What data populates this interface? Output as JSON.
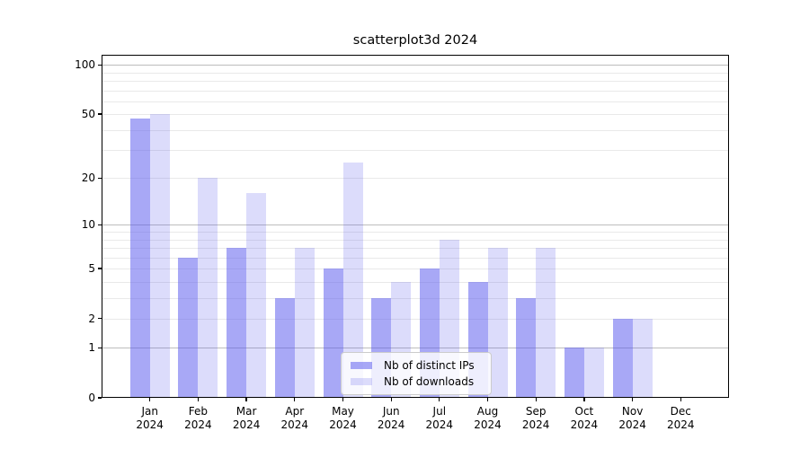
{
  "chart_data": {
    "type": "bar",
    "title": "scatterplot3d 2024",
    "x": {
      "categories": [
        {
          "month": "Jan",
          "year": "2024"
        },
        {
          "month": "Feb",
          "year": "2024"
        },
        {
          "month": "Mar",
          "year": "2024"
        },
        {
          "month": "Apr",
          "year": "2024"
        },
        {
          "month": "May",
          "year": "2024"
        },
        {
          "month": "Jun",
          "year": "2024"
        },
        {
          "month": "Jul",
          "year": "2024"
        },
        {
          "month": "Aug",
          "year": "2024"
        },
        {
          "month": "Sep",
          "year": "2024"
        },
        {
          "month": "Oct",
          "year": "2024"
        },
        {
          "month": "Nov",
          "year": "2024"
        },
        {
          "month": "Dec",
          "year": "2024"
        }
      ]
    },
    "series": [
      {
        "name": "Nb of distinct IPs",
        "color": "rgba(90,90,238,0.53)",
        "values": [
          47,
          6,
          7,
          3,
          5,
          3,
          5,
          4,
          3,
          1,
          2,
          0
        ]
      },
      {
        "name": "Nb of downloads",
        "color": "rgba(90,90,238,0.21)",
        "values": [
          50,
          20,
          16,
          7,
          25,
          4,
          8,
          7,
          7,
          1,
          2,
          0
        ]
      }
    ],
    "y_axis": {
      "scale": "log10(1+value)",
      "tick_values": [
        0,
        1,
        2,
        5,
        10,
        20,
        50,
        100
      ],
      "tick_labels": [
        "0",
        "1",
        "2",
        "5",
        "10",
        "20",
        "50",
        "100"
      ],
      "major_grid_values": [
        1,
        10,
        100
      ],
      "minor_grid_values": [
        2,
        3,
        4,
        5,
        6,
        7,
        8,
        9,
        20,
        30,
        40,
        50,
        60,
        70,
        80,
        90
      ],
      "ylim": [
        0,
        115
      ]
    },
    "legend": {
      "entries": [
        "Nb of distinct IPs",
        "Nb of downloads"
      ],
      "position": "lower center inside plot"
    },
    "grid": "horizontal"
  },
  "colors": {
    "background": "#ffffff",
    "spine": "#000000",
    "grid_major": "#bdbdbd",
    "grid_minor": "#e9e9e9",
    "bar_distinct_ips": "rgba(90,90,238,0.53)",
    "bar_downloads": "rgba(90,90,238,0.21)",
    "legend_border": "#cccccc",
    "legend_background": "rgba(255,255,255,0.8)",
    "text": "#000000"
  }
}
